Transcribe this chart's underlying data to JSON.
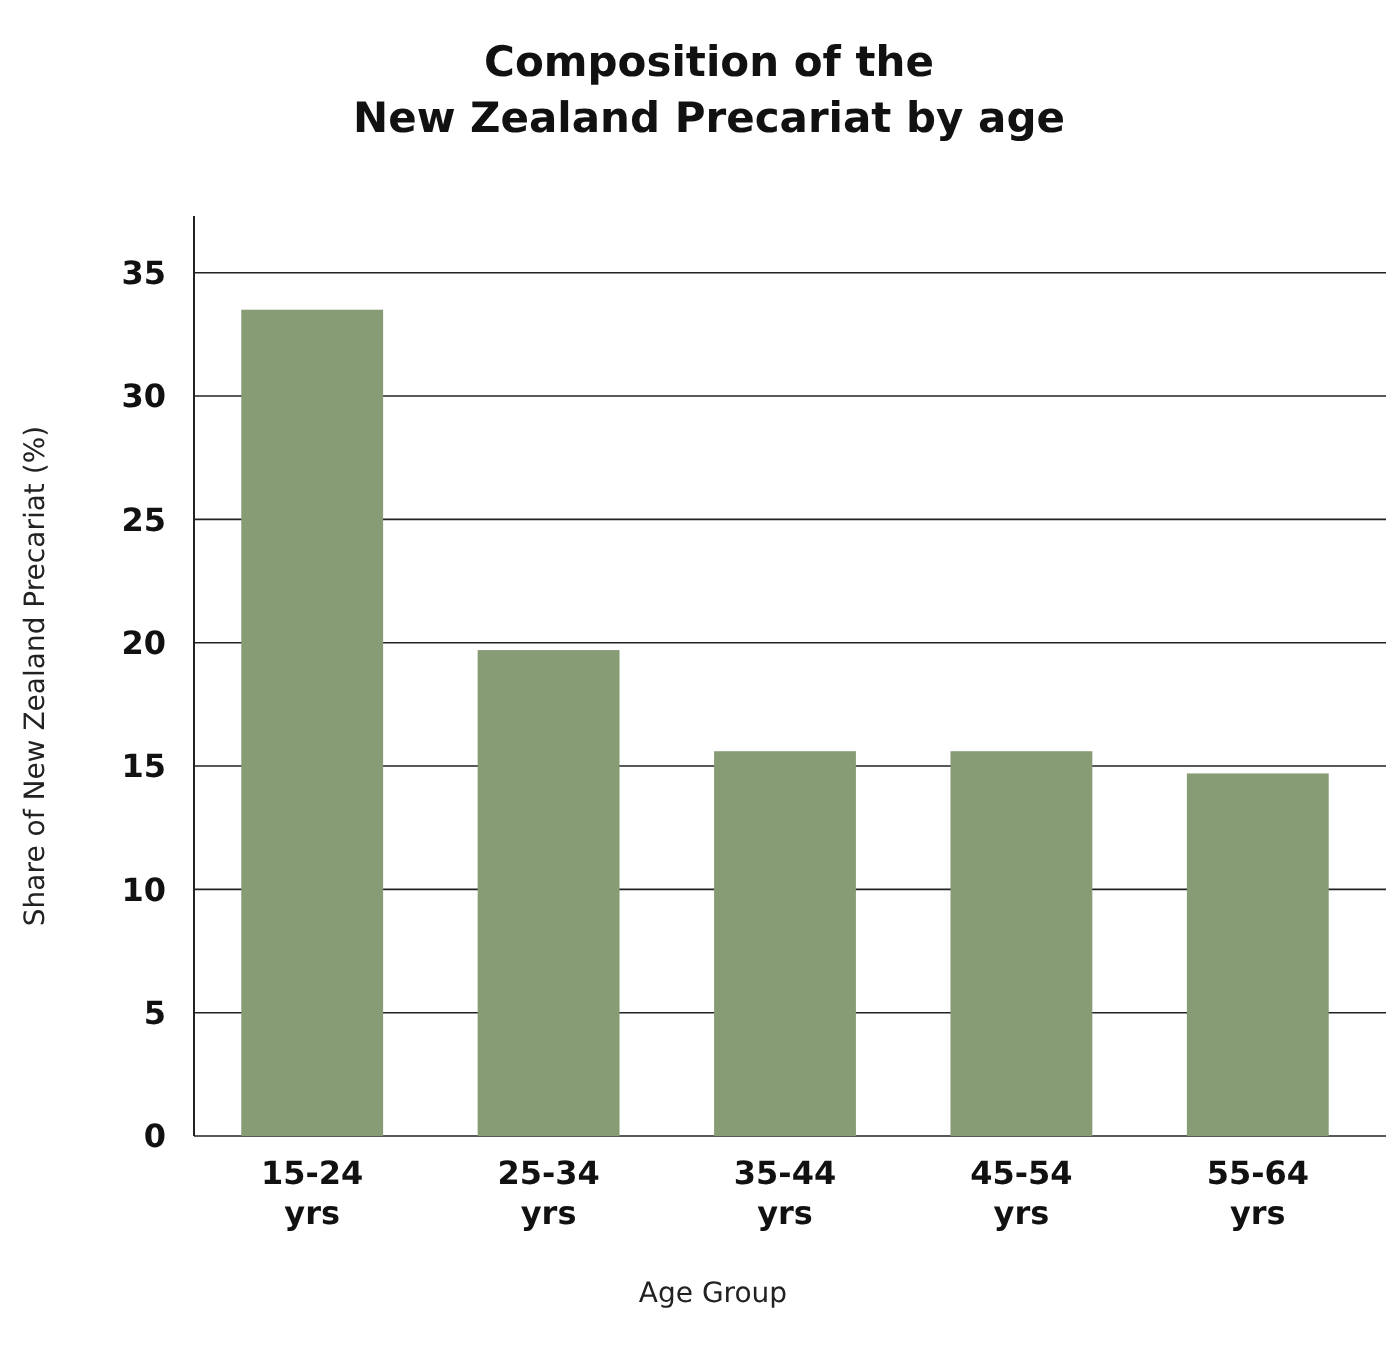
{
  "chart_data": {
    "type": "bar",
    "title": "Composition of the\nNew Zealand Precariat by age",
    "xlabel": "Age Group",
    "ylabel": "Share of New Zealand Precariat (%)",
    "categories": [
      "15-24 yrs",
      "25-34 yrs",
      "35-44 yrs",
      "45-54 yrs",
      "55-64 yrs"
    ],
    "values": [
      33.5,
      19.7,
      15.6,
      15.6,
      14.7
    ],
    "color": "#879c75",
    "ylim": [
      0,
      37.3
    ],
    "yticks": [
      0,
      5,
      10,
      15,
      20,
      25,
      30,
      35
    ],
    "grid": "y"
  }
}
